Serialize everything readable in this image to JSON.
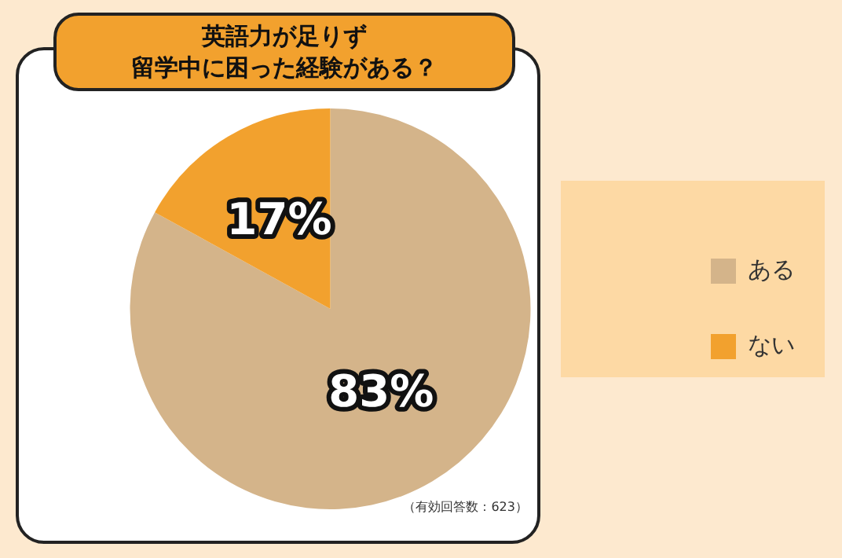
{
  "chart_data": {
    "type": "pie",
    "title": "英語力が足りず",
    "subtitle": "留学中に困った経験がある？",
    "categories": [
      "ある",
      "ない"
    ],
    "values": [
      83,
      17
    ],
    "colors": [
      "#d4b48a",
      "#f2a12e"
    ],
    "value_labels": [
      "83%",
      "17%"
    ],
    "legend": "right",
    "annotations": [
      "（有効回答数：623）"
    ]
  }
}
